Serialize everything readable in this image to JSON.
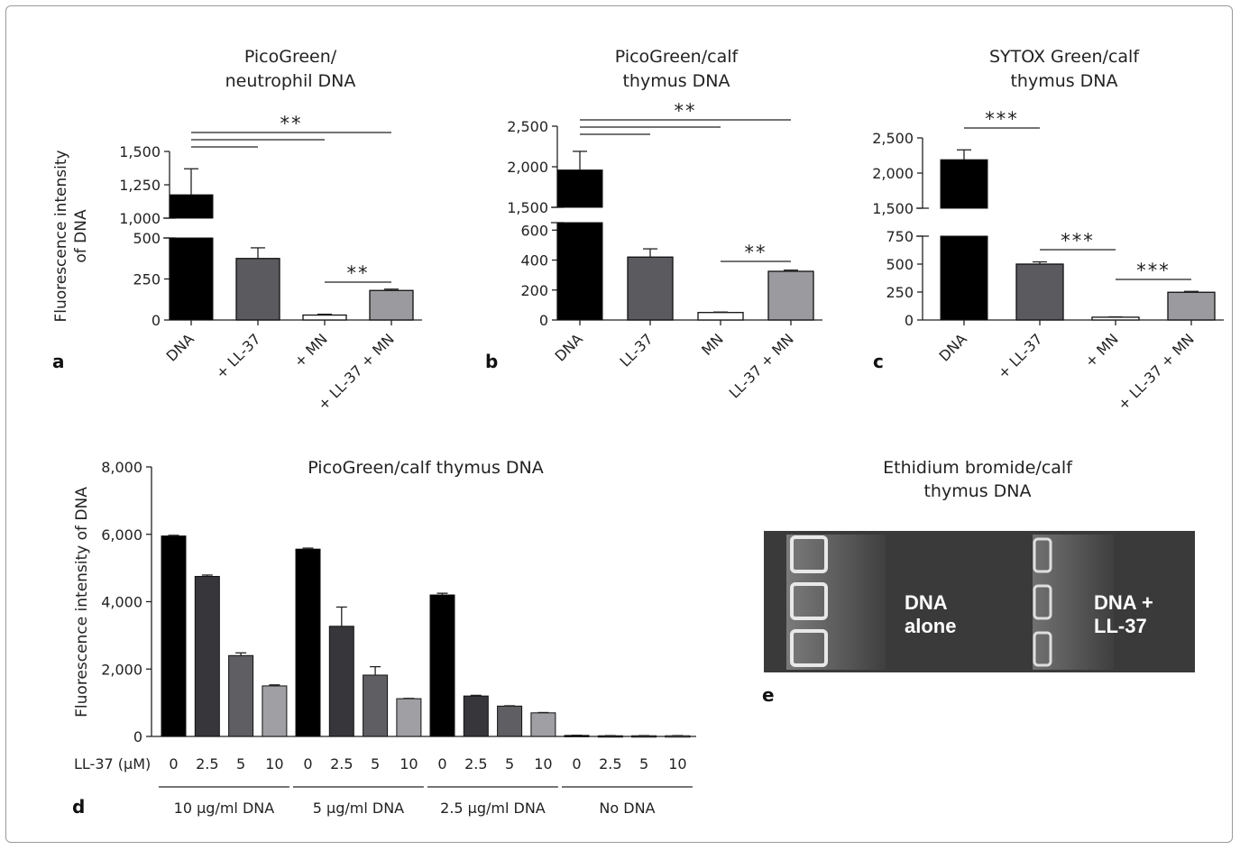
{
  "chart_data": [
    {
      "panel": "a",
      "type": "bar",
      "title": [
        "PicoGreen/",
        "neutrophil DNA"
      ],
      "ylabel": [
        "Fluorescence intensity",
        "of DNA"
      ],
      "categories": [
        "DNA",
        "+ LL-37",
        "+ MN",
        "+ LL-37 + MN"
      ],
      "values": [
        1175,
        375,
        30,
        180
      ],
      "errors": [
        195,
        65,
        5,
        8
      ],
      "colors": [
        "#000000",
        "#5b5b5f",
        "#ffffff",
        "#9b9b9f"
      ],
      "broken_axis": true,
      "lower_range": [
        0,
        500
      ],
      "upper_range": [
        1000,
        1500
      ],
      "lower_ticks": [
        "0",
        "250",
        "500"
      ],
      "upper_ticks": [
        "1,000",
        "1,250",
        "1,500"
      ],
      "significance": [
        {
          "from": 0,
          "to": 3,
          "label": "**"
        },
        {
          "from": 0,
          "to": 2,
          "label": ""
        },
        {
          "from": 0,
          "to": 1,
          "label": ""
        },
        {
          "from": 2,
          "to": 3,
          "label": "**"
        }
      ]
    },
    {
      "panel": "b",
      "type": "bar",
      "title": [
        "PicoGreen/calf",
        "thymus DNA"
      ],
      "categories": [
        "DNA",
        "LL-37",
        "MN",
        "LL-37 + MN"
      ],
      "values": [
        1960,
        420,
        50,
        325
      ],
      "errors": [
        230,
        55,
        3,
        8
      ],
      "colors": [
        "#000000",
        "#5b5b5f",
        "#ffffff",
        "#9b9b9f"
      ],
      "broken_axis": true,
      "lower_range": [
        0,
        650
      ],
      "upper_range": [
        1500,
        2500
      ],
      "lower_ticks": [
        "0",
        "200",
        "400",
        "600"
      ],
      "upper_ticks": [
        "1,500",
        "2,000",
        "2,500"
      ],
      "significance": [
        {
          "from": 0,
          "to": 3,
          "label": "**"
        },
        {
          "from": 0,
          "to": 2,
          "label": ""
        },
        {
          "from": 0,
          "to": 1,
          "label": ""
        },
        {
          "from": 2,
          "to": 3,
          "label": "**"
        }
      ]
    },
    {
      "panel": "c",
      "type": "bar",
      "title": [
        "SYTOX Green/calf",
        "thymus DNA"
      ],
      "categories": [
        "DNA",
        "+ LL-37",
        "+ MN",
        "+ LL-37 + MN"
      ],
      "values": [
        2190,
        500,
        25,
        248
      ],
      "errors": [
        140,
        20,
        3,
        8
      ],
      "colors": [
        "#000000",
        "#5b5b5f",
        "#ffffff",
        "#9b9b9f"
      ],
      "broken_axis": true,
      "lower_range": [
        0,
        750
      ],
      "upper_range": [
        1500,
        2500
      ],
      "lower_ticks": [
        "0",
        "250",
        "500",
        "750"
      ],
      "upper_ticks": [
        "1,500",
        "2,000",
        "2,500"
      ],
      "significance": [
        {
          "from": 0,
          "to": 1,
          "label": "***"
        },
        {
          "from": 1,
          "to": 2,
          "label": "***"
        },
        {
          "from": 2,
          "to": 3,
          "label": "***"
        }
      ]
    },
    {
      "panel": "d",
      "type": "bar",
      "title": "PicoGreen/calf thymus DNA",
      "ylabel": "Fluorescence intensity of DNA",
      "xlabel": "LL-37 (μM)",
      "ylim": [
        0,
        8000
      ],
      "yticks": [
        "0",
        "2,000",
        "4,000",
        "6,000",
        "8,000"
      ],
      "conc_labels": [
        "0",
        "2.5",
        "5",
        "10"
      ],
      "colors": [
        "#000000",
        "#37373b",
        "#5f5f63",
        "#a0a0a4"
      ],
      "groups": [
        {
          "name": "10 μg/ml DNA",
          "values": [
            5950,
            4750,
            2400,
            1500
          ],
          "errors": [
            20,
            40,
            80,
            30
          ]
        },
        {
          "name": "5 μg/ml DNA",
          "values": [
            5560,
            3270,
            1820,
            1120
          ],
          "errors": [
            30,
            570,
            250,
            10
          ]
        },
        {
          "name": "2.5 μg/ml DNA",
          "values": [
            4200,
            1200,
            900,
            700
          ],
          "errors": [
            50,
            20,
            10,
            10
          ]
        },
        {
          "name": "No DNA",
          "values": [
            30,
            20,
            20,
            20
          ],
          "errors": [
            5,
            5,
            5,
            5
          ]
        }
      ]
    }
  ],
  "panel_letters": {
    "a": "a",
    "b": "b",
    "c": "c",
    "d": "d",
    "e": "e"
  },
  "gel": {
    "title": [
      "Ethidium bromide/calf",
      "thymus DNA"
    ],
    "label_left": [
      "DNA",
      "alone"
    ],
    "label_right": [
      "DNA +",
      "LL-37"
    ]
  }
}
